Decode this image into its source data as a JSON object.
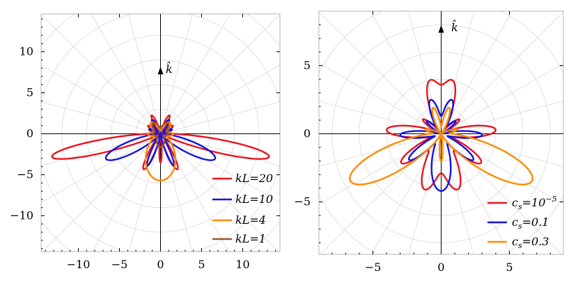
{
  "chart_data": [
    {
      "type": "polar",
      "annotation": "k̂",
      "xlim": [
        -14.5,
        14.5
      ],
      "ylim": [
        -14.5,
        14.5
      ],
      "xticks": [
        -10,
        -5,
        0,
        5,
        10
      ],
      "yticks": [
        -10,
        -5,
        0,
        5,
        10
      ],
      "tick_labels": [
        "−10",
        "−5",
        "0",
        "5",
        "10"
      ],
      "grid": true,
      "legend_position": "bottom-right",
      "series": [
        {
          "name": "kL=20",
          "color": "#e8141e",
          "lobe_radii": {
            "side": 13.5,
            "lower_inner": 4.8,
            "up": 2.5,
            "down": 2.2
          }
        },
        {
          "name": "kL=10",
          "color": "#1414e0",
          "lobe_radii": {
            "side": 7.3,
            "lower_inner": 4.2,
            "up": 2.0
          }
        },
        {
          "name": "kL=4",
          "color": "#ff8a00",
          "lobe_radii": {
            "down": 5.7,
            "up": 1.8
          }
        },
        {
          "name": "kL=1",
          "color": "#a0522d",
          "lobe_radii": {
            "up": 1.6,
            "down": 1.6
          }
        }
      ]
    },
    {
      "type": "polar",
      "annotation": "k̂",
      "xlim": [
        -8.5,
        8.5
      ],
      "ylim": [
        -8.5,
        8.5
      ],
      "xticks": [
        -5,
        0,
        5
      ],
      "yticks": [
        -5,
        0,
        5
      ],
      "tick_labels": [
        "−5",
        "0",
        "5"
      ],
      "grid": true,
      "legend_position": "bottom-right",
      "series": [
        {
          "name": "cs=10⁻⁵",
          "label_parts": [
            "c",
            "s",
            "=10",
            "−5"
          ],
          "color": "#e8141e",
          "lobe_radii": {
            "up": 3.8,
            "side": 4.0,
            "down": 4.2
          }
        },
        {
          "name": "cs=0.1",
          "label_parts": [
            "c",
            "s",
            "=0.1",
            ""
          ],
          "color": "#1414e0",
          "lobe_radii": {
            "up": 2.6,
            "side": 3.0,
            "down": 4.2
          }
        },
        {
          "name": "cs=0.3",
          "label_parts": [
            "c",
            "s",
            "=0.3",
            ""
          ],
          "color": "#ff8a00",
          "lobe_radii": {
            "side": 7.5,
            "up": 2.0
          }
        }
      ]
    }
  ]
}
